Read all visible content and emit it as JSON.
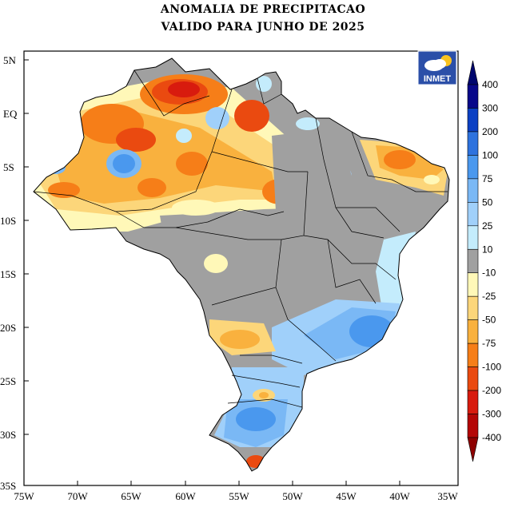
{
  "title_line1": "ANOMALIA DE PRECIPITACAO",
  "title_line2": "VALIDO PARA JUNHO DE 2025",
  "logo_text": "INMET",
  "lat_labels": [
    "5N",
    "EQ",
    "5S",
    "10S",
    "15S",
    "20S",
    "25S",
    "30S",
    "35S"
  ],
  "lon_labels": [
    "75W",
    "70W",
    "65W",
    "60W",
    "55W",
    "50W",
    "45W",
    "40W",
    "35W"
  ],
  "colorbar": {
    "labels": [
      "400",
      "300",
      "200",
      "100",
      "75",
      "50",
      "25",
      "10",
      "-10",
      "-25",
      "-50",
      "-75",
      "-100",
      "-200",
      "-300",
      "-400"
    ],
    "colors": [
      "#08088a",
      "#0b40c4",
      "#2d72de",
      "#4a98ee",
      "#7ab8f5",
      "#a0d0fa",
      "#c4ecfc",
      "#a0a0a0",
      "#fff8b8",
      "#fcd67a",
      "#f9b13e",
      "#f67e18",
      "#ea4a10",
      "#d81b0e",
      "#b40606"
    ]
  }
}
